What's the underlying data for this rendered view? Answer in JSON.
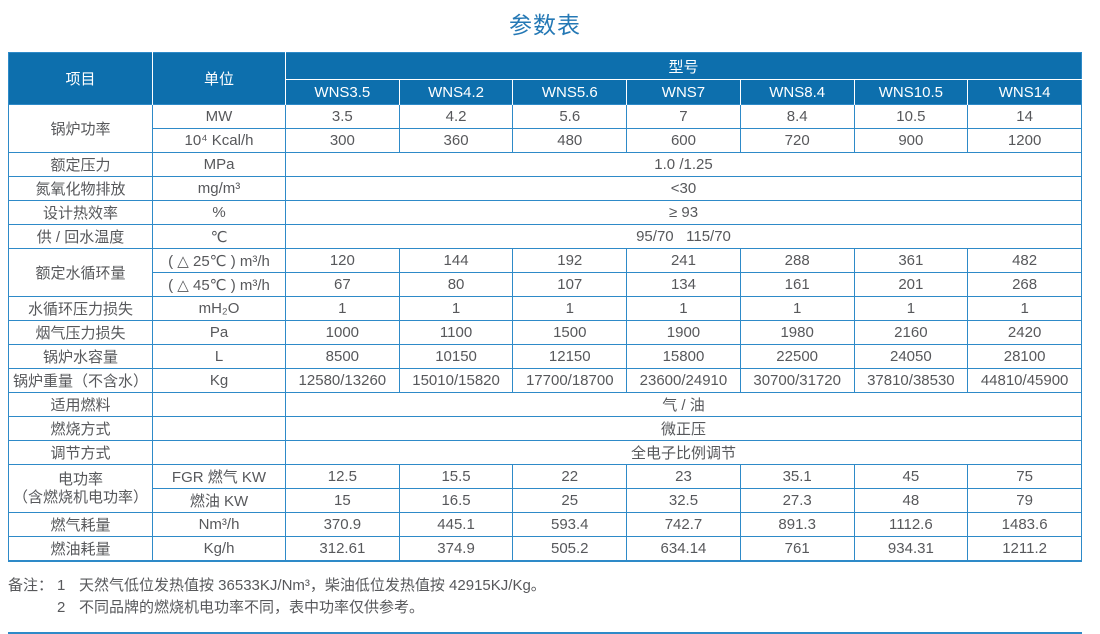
{
  "title": "参数表",
  "colors": {
    "header_bg": "#0d6fad",
    "grid_line": "#2e8ac8",
    "title_blue": "#2478b5",
    "body_text": "#57585b"
  },
  "table": {
    "header": {
      "item_label": "项目",
      "unit_label": "单位",
      "model_label": "型号",
      "models": [
        "WNS3.5",
        "WNS4.2",
        "WNS5.6",
        "WNS7",
        "WNS8.4",
        "WNS10.5",
        "WNS14"
      ]
    },
    "rows": [
      {
        "label": "锅炉功率",
        "rowspan": 2,
        "unit": "MW",
        "values": [
          "3.5",
          "4.2",
          "5.6",
          "7",
          "8.4",
          "10.5",
          "14"
        ]
      },
      {
        "unit": "10⁴ Kcal/h",
        "values": [
          "300",
          "360",
          "480",
          "600",
          "720",
          "900",
          "1200"
        ]
      },
      {
        "label": "额定压力",
        "unit": "MPa",
        "merged": "1.0 /1.25"
      },
      {
        "label": "氮氧化物排放",
        "unit": "mg/m³",
        "merged": "<30"
      },
      {
        "label": "设计热效率",
        "unit": "%",
        "merged": "≥ 93"
      },
      {
        "label": "供 / 回水温度",
        "unit": "℃",
        "merged": "95/70   115/70"
      },
      {
        "label": "额定水循环量",
        "rowspan": 2,
        "unit": "( △ 25℃ ) m³/h",
        "values": [
          "120",
          "144",
          "192",
          "241",
          "288",
          "361",
          "482"
        ]
      },
      {
        "unit": "( △ 45℃ ) m³/h",
        "values": [
          "67",
          "80",
          "107",
          "134",
          "161",
          "201",
          "268"
        ]
      },
      {
        "label": "水循环压力损失",
        "unit": "mH₂O",
        "values": [
          "1",
          "1",
          "1",
          "1",
          "1",
          "1",
          "1"
        ]
      },
      {
        "label": "烟气压力损失",
        "unit": "Pa",
        "values": [
          "1000",
          "1100",
          "1500",
          "1900",
          "1980",
          "2160",
          "2420"
        ]
      },
      {
        "label": "锅炉水容量",
        "unit": "L",
        "values": [
          "8500",
          "10150",
          "12150",
          "15800",
          "22500",
          "24050",
          "28100"
        ]
      },
      {
        "label": "锅炉重量（不含水）",
        "unit": "Kg",
        "values": [
          "12580/13260",
          "15010/15820",
          "17700/18700",
          "23600/24910",
          "30700/31720",
          "37810/38530",
          "44810/45900"
        ]
      },
      {
        "label": "适用燃料",
        "unit": "",
        "merged": "气 / 油"
      },
      {
        "label": "燃烧方式",
        "unit": "",
        "merged": "微正压"
      },
      {
        "label": "调节方式",
        "unit": "",
        "merged": "全电子比例调节"
      },
      {
        "label": "电功率",
        "label2": "（含燃烧机电功率）",
        "rowspan": 2,
        "unit": "FGR 燃气 KW",
        "values": [
          "12.5",
          "15.5",
          "22",
          "23",
          "35.1",
          "45",
          "75"
        ]
      },
      {
        "unit": "燃油 KW",
        "values": [
          "15",
          "16.5",
          "25",
          "32.5",
          "27.3",
          "48",
          "79"
        ]
      },
      {
        "label": "燃气耗量",
        "unit": "Nm³/h",
        "values": [
          "370.9",
          "445.1",
          "593.4",
          "742.7",
          "891.3",
          "1112.6",
          "1483.6"
        ]
      },
      {
        "label": "燃油耗量",
        "unit": "Kg/h",
        "values": [
          "312.61",
          "374.9",
          "505.2",
          "634.14",
          "761",
          "934.31",
          "1211.2"
        ]
      }
    ]
  },
  "notes": {
    "prefix": "备注：",
    "items": [
      {
        "num": "1",
        "text": "天然气低位发热值按 36533KJ/Nm³，柴油低位发热值按 42915KJ/Kg。"
      },
      {
        "num": "2",
        "text": "不同品牌的燃烧机电功率不同，表中功率仅供参考。"
      }
    ]
  }
}
